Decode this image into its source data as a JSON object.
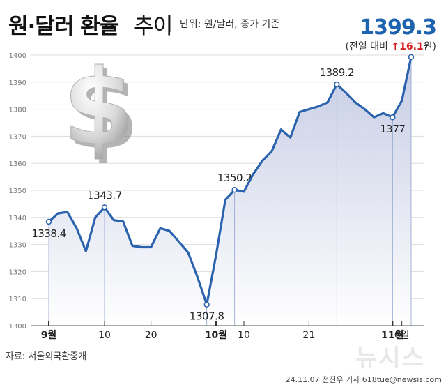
{
  "header": {
    "title_bold": "원·달러 환율",
    "title_normal": "추이",
    "unit_note": "단위: 원/달러, 종가 기준",
    "latest_value": "1399.3",
    "change_prefix": "(전일 대비",
    "change_value": "16.1",
    "change_suffix": "원)",
    "change_arrow_icon": "arrow-up-icon"
  },
  "footer": {
    "source": "자료: 서울외국환중개",
    "credit": "24.11.07 전진우 기자 618tue@newsis.com",
    "watermark": "뉴시스"
  },
  "colors": {
    "line": "#2a62ad",
    "area_top": "#c2c9e3",
    "area_bottom": "#ffffff",
    "grid": "#dddddd",
    "up": "#d62020",
    "latest": "#1d63b0"
  },
  "decor": {
    "icon": "dollar-sign-icon"
  },
  "chart_data": {
    "type": "area",
    "ylim": [
      1300,
      1400
    ],
    "yticks": [
      1300,
      1310,
      1320,
      1330,
      1340,
      1350,
      1360,
      1370,
      1380,
      1390,
      1400
    ],
    "grid": true,
    "xtick_labels": [
      {
        "i": 0,
        "label": "9월",
        "bold": true
      },
      {
        "i": 6,
        "label": "10",
        "bold": false
      },
      {
        "i": 11,
        "label": "20",
        "bold": false
      },
      {
        "i": 18,
        "label": "10월",
        "bold": true
      },
      {
        "i": 21,
        "label": "10",
        "bold": false
      },
      {
        "i": 28,
        "label": "21",
        "bold": false
      },
      {
        "i": 37,
        "label": "11월",
        "bold": true
      },
      {
        "i": 38,
        "label": "6일",
        "bold": false
      }
    ],
    "values": [
      1338.4,
      1341.5,
      1342.0,
      1336.0,
      1327.5,
      1340.0,
      1343.7,
      1339.0,
      1338.5,
      1329.5,
      1329.0,
      1329.0,
      1336.0,
      1335.0,
      1331.0,
      1327.0,
      1318.0,
      1307.8,
      1326.0,
      1346.5,
      1350.2,
      1349.5,
      1356.0,
      1361.0,
      1364.5,
      1372.5,
      1369.5,
      1379.0,
      1380.0,
      1381.0,
      1382.5,
      1389.2,
      1386.0,
      1382.5,
      1380.0,
      1377.0,
      1378.5,
      1377.0,
      1383.2,
      1399.3
    ],
    "annotations": [
      {
        "i": 0,
        "label": "1338.4",
        "pos": "below"
      },
      {
        "i": 6,
        "label": "1343.7",
        "pos": "above"
      },
      {
        "i": 17,
        "label": "1307.8",
        "pos": "below"
      },
      {
        "i": 20,
        "label": "1350.2",
        "pos": "above"
      },
      {
        "i": 31,
        "label": "1389.2",
        "pos": "above"
      },
      {
        "i": 37,
        "label": "1377",
        "pos": "below"
      },
      {
        "i": 39,
        "label": "",
        "pos": "none"
      }
    ]
  }
}
